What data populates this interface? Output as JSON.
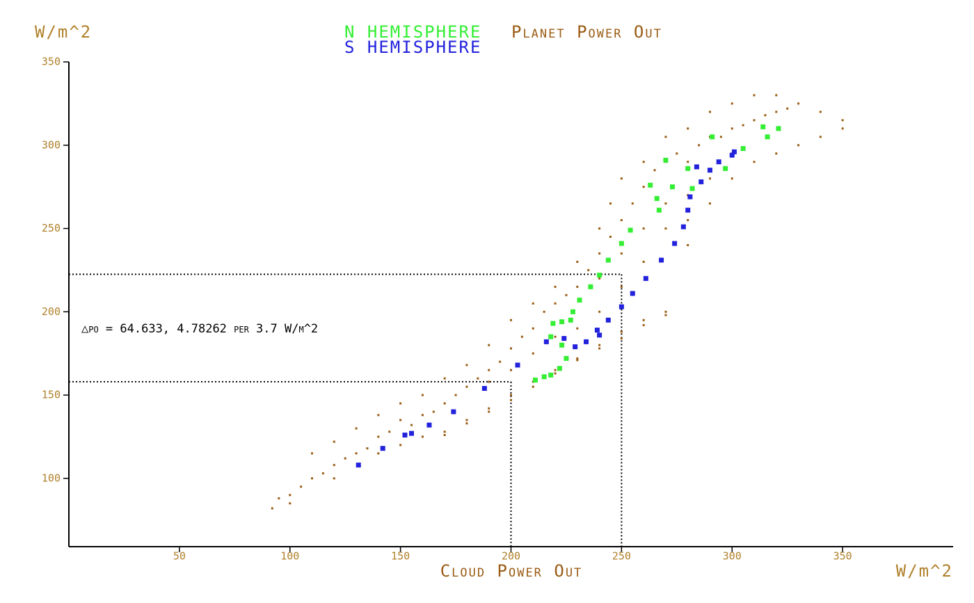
{
  "chart_data": {
    "type": "scatter",
    "title": "Planet Power Out",
    "y_label": "W/m^2",
    "x_label": "Cloud Power Out",
    "x_unit": "W/m^2",
    "annotation": "△po = 64.633, 4.78262 per 3.7 W/m^2",
    "xlim": [
      0,
      400
    ],
    "ylim": [
      59,
      350
    ],
    "xticks": [
      50,
      100,
      150,
      200,
      250,
      300,
      350
    ],
    "yticks": [
      100,
      150,
      200,
      250,
      300,
      350
    ],
    "reference_lines": [
      {
        "x": 200,
        "y": 158
      },
      {
        "x": 250,
        "y": 222.5
      }
    ],
    "series": [
      {
        "name": "Planet Power Out",
        "color": "#9a5c14",
        "x": [
          92,
          95,
          100,
          105,
          110,
          115,
          120,
          125,
          130,
          135,
          140,
          145,
          150,
          155,
          160,
          165,
          170,
          175,
          180,
          185,
          190,
          195,
          200,
          205,
          210,
          215,
          220,
          225,
          230,
          235,
          240,
          245,
          250,
          255,
          260,
          265,
          270,
          275,
          280,
          285,
          290,
          295,
          300,
          305,
          310,
          315,
          320,
          325,
          330,
          340,
          350,
          110,
          120,
          130,
          140,
          150,
          160,
          170,
          180,
          190,
          200,
          210,
          220,
          230,
          240,
          245,
          250,
          260,
          270,
          280,
          290,
          300,
          310,
          320,
          100,
          120,
          140,
          150,
          160,
          170,
          180,
          190,
          200,
          210,
          220,
          230,
          240,
          250,
          260,
          270,
          280,
          290,
          300,
          310,
          320,
          330,
          340,
          350,
          170,
          180,
          190,
          200,
          210,
          220,
          230,
          240,
          250,
          260,
          270,
          230,
          240,
          250,
          260,
          270,
          280,
          290,
          300,
          220,
          210,
          200,
          190,
          260,
          270,
          250,
          240,
          280,
          290
        ],
        "y": [
          82,
          88,
          90,
          95,
          100,
          103,
          108,
          112,
          115,
          118,
          125,
          128,
          135,
          132,
          138,
          140,
          145,
          150,
          155,
          160,
          165,
          170,
          178,
          185,
          190,
          200,
          205,
          210,
          215,
          225,
          235,
          245,
          255,
          265,
          275,
          285,
          290,
          295,
          290,
          300,
          305,
          305,
          310,
          312,
          315,
          318,
          320,
          322,
          325,
          320,
          315,
          115,
          122,
          130,
          138,
          145,
          150,
          160,
          168,
          180,
          195,
          205,
          215,
          230,
          250,
          265,
          280,
          290,
          305,
          310,
          320,
          325,
          330,
          330,
          85,
          100,
          115,
          120,
          125,
          128,
          135,
          142,
          150,
          158,
          165,
          172,
          180,
          188,
          195,
          200,
          240,
          265,
          280,
          290,
          295,
          300,
          305,
          310,
          126,
          133,
          140,
          147,
          155,
          163,
          171,
          178,
          184,
          192,
          198,
          190,
          200,
          215,
          230,
          250,
          270,
          285,
          295,
          185,
          175,
          165,
          158,
          250,
          265,
          235,
          220,
          255,
          280
        ]
      },
      {
        "name": "N HEMISPHERE",
        "color": "#33ee33",
        "x": [
          321,
          314,
          316,
          291,
          305,
          270,
          280,
          297,
          282,
          273,
          263,
          266,
          267,
          254,
          250,
          244,
          240,
          236,
          231,
          228,
          227,
          223,
          219,
          218,
          223,
          225,
          222,
          218,
          211,
          215
        ],
        "y": [
          310,
          311,
          305,
          305,
          298,
          291,
          286,
          286,
          274,
          275,
          276,
          268,
          261,
          249,
          241,
          231,
          222,
          215,
          207,
          200,
          195,
          194,
          193,
          185,
          180,
          172,
          166,
          162,
          159,
          161
        ]
      },
      {
        "name": "S HEMISPHERE",
        "color": "#2222dd",
        "x": [
          131,
          142,
          152,
          155,
          163,
          174,
          188,
          203,
          216,
          224,
          229,
          234,
          239,
          240,
          244,
          250,
          255,
          261,
          268,
          274,
          278,
          280,
          281,
          286,
          284,
          290,
          294,
          300,
          301
        ],
        "y": [
          108,
          118,
          126,
          127,
          132,
          140,
          154,
          168,
          182,
          184,
          179,
          182,
          189,
          186,
          195,
          203,
          211,
          220,
          231,
          241,
          251,
          261,
          269,
          278,
          287,
          285,
          290,
          294,
          296
        ]
      }
    ]
  }
}
